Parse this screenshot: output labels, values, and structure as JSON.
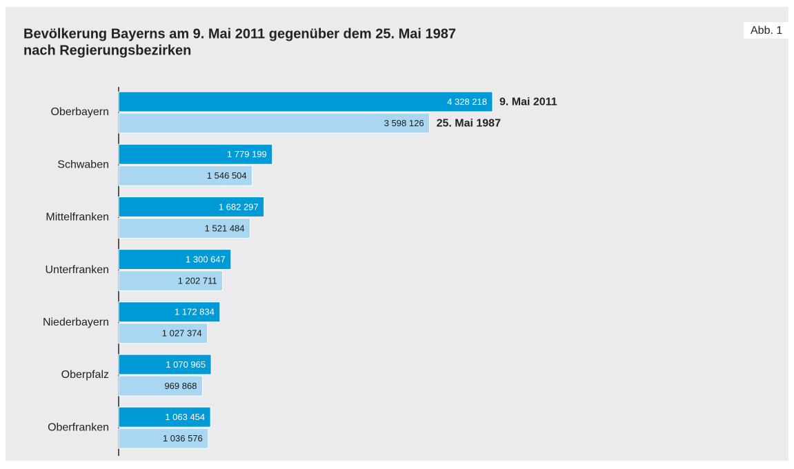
{
  "chart_data": {
    "type": "bar",
    "orientation": "horizontal",
    "title": [
      "Bevölkerung Bayerns am 9. Mai 2011 gegenüber dem 25. Mai 1987",
      "nach Regierungsbezirken"
    ],
    "figure_label": "Abb. 1",
    "categories": [
      "Oberbayern",
      "Schwaben",
      "Mittelfranken",
      "Unterfranken",
      "Niederbayern",
      "Oberpfalz",
      "Oberfranken"
    ],
    "series": [
      {
        "name": "9. Mai 2011",
        "color": "#009ad6",
        "label_color": "#ffffff",
        "values": [
          4328218,
          1779199,
          1682297,
          1300647,
          1172834,
          1070965,
          1063454
        ],
        "value_labels": [
          "4 328 218",
          "1 779 199",
          "1 682 297",
          "1 300 647",
          "1 172 834",
          "1 070 965",
          "1 063 454"
        ]
      },
      {
        "name": "25. Mai 1987",
        "color": "#a9d6f0",
        "label_color": "#1a1a1a",
        "values": [
          3598126,
          1546504,
          1521484,
          1202711,
          1027374,
          969868,
          1036576
        ],
        "value_labels": [
          "3 598 126",
          "1 546 504",
          "1 521 484",
          "1 202 711",
          "1 027 374",
          "969 868",
          "1 036 576"
        ]
      }
    ]
  }
}
